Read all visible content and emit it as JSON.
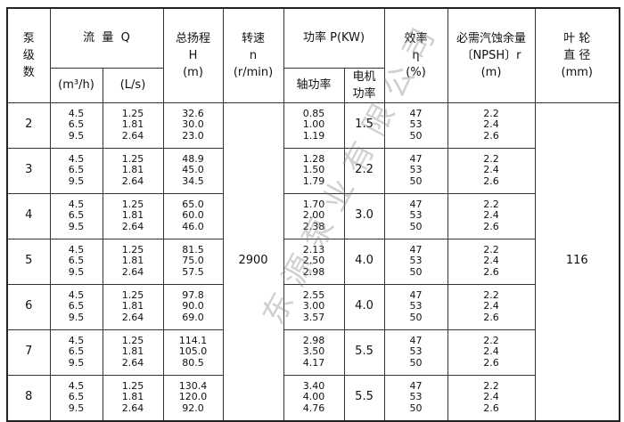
{
  "header": {
    "stages": "泵\n级\n数",
    "flow": "流  量  Q",
    "flow_m3h": "(m³/h)",
    "flow_ls": "(L/s)",
    "head": "总扬程",
    "head_sym": "H",
    "head_unit": "(m)",
    "speed": "转速",
    "speed_sym": "n",
    "speed_unit": "(r/min)",
    "power": "功率 P(KW)",
    "shaft_power": "轴功率",
    "motor_power": "电机\n功率",
    "efficiency": "效率",
    "eff_sym": "η",
    "eff_unit": "(%)",
    "npsh": "必需汽蚀余量",
    "npsh_sym": "〔NPSH〕r",
    "npsh_unit": "(m)",
    "impeller": "叶  轮\n直  径",
    "impeller_unit": "(mm)"
  },
  "speed_value": "2900",
  "impeller_value": "116",
  "rows": [
    {
      "stage": "2",
      "q_m3h": "4.5\n6.5\n9.5",
      "q_ls": "1.25\n1.81\n2.64",
      "head": "32.6\n30.0\n23.0",
      "shaft": "0.85\n1.00\n1.19",
      "motor": "1.5",
      "eff": "47\n53\n50",
      "npsh": "2.2\n2.4\n2.6"
    },
    {
      "stage": "3",
      "q_m3h": "4.5\n6.5\n9.5",
      "q_ls": "1.25\n1.81\n2.64",
      "head": "48.9\n45.0\n34.5",
      "shaft": "1.28\n1.50\n1.79",
      "motor": "2.2",
      "eff": "47\n53\n50",
      "npsh": "2.2\n2.4\n2.6"
    },
    {
      "stage": "4",
      "q_m3h": "4.5\n6.5\n9.5",
      "q_ls": "1.25\n1.81\n2.64",
      "head": "65.0\n60.0\n46.0",
      "shaft": "1.70\n2.00\n2.38",
      "motor": "3.0",
      "eff": "47\n53\n50",
      "npsh": "2.2\n2.4\n2.6"
    },
    {
      "stage": "5",
      "q_m3h": "4.5\n6.5\n9.5",
      "q_ls": "1.25\n1.81\n2.64",
      "head": "81.5\n75.0\n57.5",
      "shaft": "2.13\n2.50\n2.98",
      "motor": "4.0",
      "eff": "47\n53\n50",
      "npsh": "2.2\n2.4\n2.6"
    },
    {
      "stage": "6",
      "q_m3h": "4.5\n6.5\n9.5",
      "q_ls": "1.25\n1.81\n2.64",
      "head": "97.8\n90.0\n69.0",
      "shaft": "2.55\n3.00\n3.57",
      "motor": "4.0",
      "eff": "47\n53\n50",
      "npsh": "2.2\n2.4\n2.6"
    },
    {
      "stage": "7",
      "q_m3h": "4.5\n6.5\n9.5",
      "q_ls": "1.25\n1.81\n2.64",
      "head": "114.1\n105.0\n80.5",
      "shaft": "2.98\n3.50\n4.17",
      "motor": "5.5",
      "eff": "47\n53\n50",
      "npsh": "2.2\n2.4\n2.6"
    },
    {
      "stage": "8",
      "q_m3h": "4.5\n6.5\n9.5",
      "q_ls": "1.25\n1.81\n2.64",
      "head": "130.4\n120.0\n92.0",
      "shaft": "3.40\n4.00\n4.76",
      "motor": "5.5",
      "eff": "47\n53\n50",
      "npsh": "2.2\n2.4\n2.6"
    }
  ],
  "watermark": "东源泵业有限公司"
}
